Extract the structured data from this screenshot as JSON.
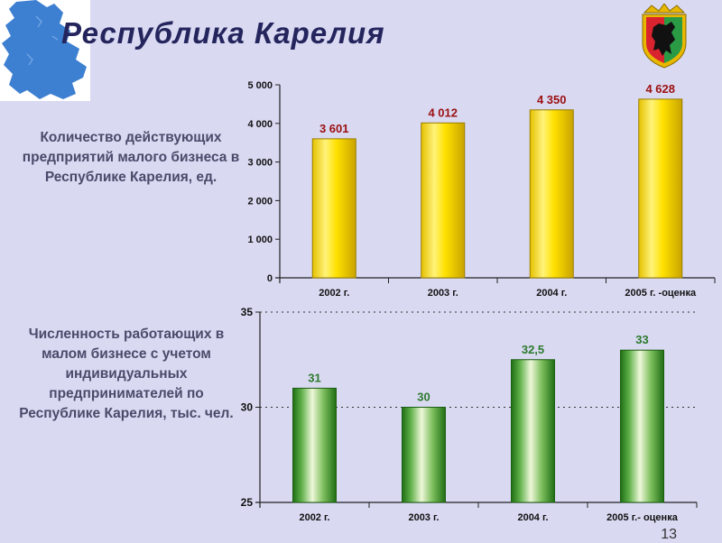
{
  "title": "Республика Карелия",
  "page_number": "13",
  "captions": {
    "enterprises": "Количество действующих предприятий малого бизнеса в Республике Карелия, ед.",
    "employment": "Численность работающих в малом бизнесе с учетом индивидуальных предпринимателей по Республике Карелия, тыс. чел."
  },
  "colors": {
    "background": "#d9d9f2",
    "title": "#25255e",
    "bar_yellow": "#ffe100",
    "bar_green": "#2e8b1e",
    "label_red": "#9b0f10",
    "label_green": "#2c7a2c",
    "map_blue": "#3d7fd1"
  },
  "chart_data": [
    {
      "type": "bar",
      "categories": [
        "2002 г.",
        "2003 г.",
        "2004 г.",
        "2005 г. -оценка"
      ],
      "values": [
        3601,
        4012,
        4350,
        4628
      ],
      "data_labels": [
        "3 601",
        "4 012",
        "4 350",
        "4 628"
      ],
      "y_ticks": [
        0,
        1000,
        2000,
        3000,
        4000,
        5000
      ],
      "y_tick_labels": [
        "0",
        "1 000",
        "2 000",
        "3 000",
        "4 000",
        "5 000"
      ],
      "ylim": [
        0,
        5000
      ],
      "grid": false
    },
    {
      "type": "bar",
      "categories": [
        "2002 г.",
        "2003 г.",
        "2004 г.",
        "2005 г.- оценка"
      ],
      "values": [
        31,
        30,
        32.5,
        33
      ],
      "data_labels": [
        "31",
        "30",
        "32,5",
        "33"
      ],
      "y_ticks": [
        25,
        30,
        35
      ],
      "y_tick_labels": [
        "25",
        "30",
        "35"
      ],
      "ylim": [
        25,
        35
      ],
      "grid": true
    }
  ]
}
